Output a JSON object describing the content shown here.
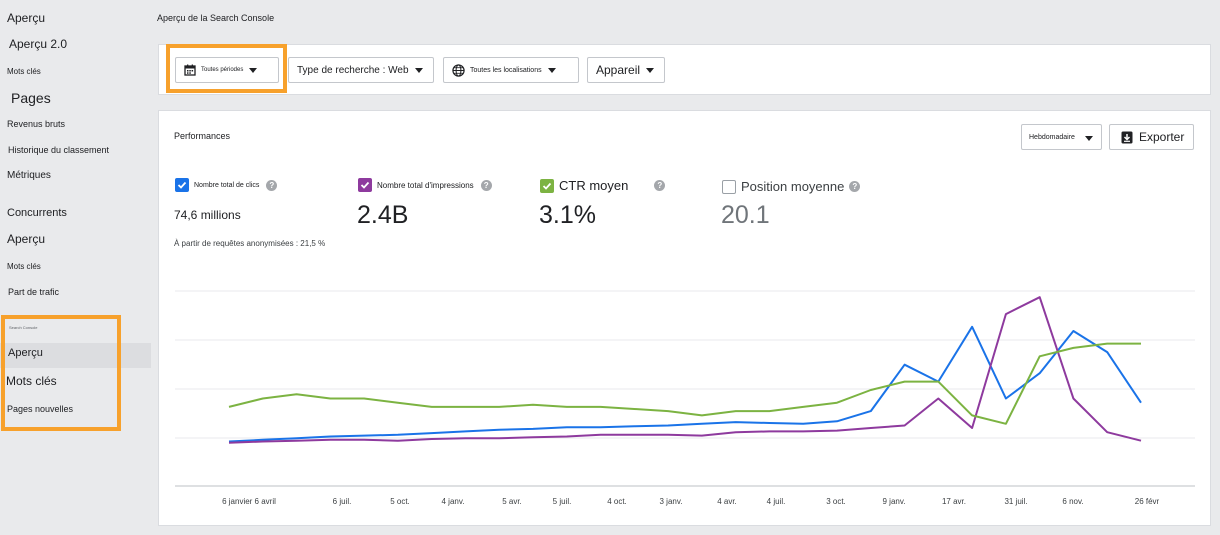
{
  "sidebar": {
    "items_top": [
      {
        "label": "Aperçu"
      },
      {
        "label": "Aperçu 2.0"
      },
      {
        "label": "Mots clés"
      },
      {
        "label": "Pages"
      },
      {
        "label": "Revenus bruts"
      },
      {
        "label": "Historique du classement"
      },
      {
        "label": "Métriques"
      }
    ],
    "competitors_heading": "Concurrents",
    "items_competitors": [
      {
        "label": "Aperçu"
      },
      {
        "label": "Mots clés"
      },
      {
        "label": "Part de trafic"
      }
    ],
    "search_console_heading": "Search Console",
    "items_search_console": [
      {
        "label": "Aperçu",
        "active": true
      },
      {
        "label": "Mots clés"
      },
      {
        "label": "Pages nouvelles"
      }
    ]
  },
  "header": {
    "title": "Aperçu de la Search Console"
  },
  "filters": {
    "period": "Toutes périodes",
    "search_type": "Type de recherche : Web",
    "location": "Toutes les localisations",
    "device": "Appareil"
  },
  "performance": {
    "title": "Performances",
    "frequency": "Hebdomadaire",
    "export_label": "Exporter",
    "metrics": [
      {
        "label": "Nombre total de clics",
        "value": "74,6 millions",
        "checked": true,
        "color": "#1a73e8"
      },
      {
        "label": "Nombre total d'impressions",
        "value": "2.4B",
        "checked": true,
        "color": "#8e3a9e"
      },
      {
        "label": "CTR moyen",
        "value": "3.1%",
        "checked": true,
        "color": "#7cb342"
      },
      {
        "label": "Position moyenne",
        "value": "20.1",
        "checked": false,
        "color": "#5f6368"
      }
    ],
    "note": "À partir de requêtes anonymisées : 21,5 %"
  },
  "chart_data": {
    "type": "line",
    "x_labels": [
      "6 janvier 6 avril",
      "6 juil.",
      "5 oct.",
      "4 janv.",
      "5 avr.",
      "5 juil.",
      "4 oct.",
      "3 janv.",
      "4 avr.",
      "4 juil.",
      "3 oct.",
      "9 janv.",
      "17 avr.",
      "31 juil.",
      "6 nov.",
      "26 févr"
    ],
    "grid": true,
    "y_tick_labels": false,
    "series": [
      {
        "name": "Nombre total de clics",
        "color": "#1a73e8",
        "values": [
          0.58,
          0.62,
          0.66,
          0.7,
          0.72,
          0.74,
          0.78,
          0.82,
          0.86,
          0.88,
          0.92,
          0.92,
          0.94,
          0.96,
          1.0,
          1.04,
          1.02,
          1.0,
          1.06,
          1.3,
          2.4,
          2.0,
          3.3,
          1.6,
          2.2,
          3.2,
          2.7,
          1.5
        ]
      },
      {
        "name": "Nombre total d'impressions",
        "color": "#8e3a9e",
        "values": [
          0.55,
          0.58,
          0.6,
          0.62,
          0.62,
          0.6,
          0.64,
          0.66,
          0.66,
          0.68,
          0.7,
          0.74,
          0.74,
          0.74,
          0.72,
          0.8,
          0.82,
          0.82,
          0.84,
          0.9,
          0.96,
          1.6,
          0.9,
          3.6,
          4.0,
          1.6,
          0.8,
          0.6
        ]
      },
      {
        "name": "CTR moyen",
        "color": "#7cb342",
        "values": [
          1.4,
          1.6,
          1.7,
          1.6,
          1.6,
          1.5,
          1.4,
          1.4,
          1.4,
          1.45,
          1.4,
          1.4,
          1.35,
          1.3,
          1.2,
          1.3,
          1.3,
          1.4,
          1.5,
          1.8,
          2.0,
          2.0,
          1.2,
          1.0,
          2.6,
          2.8,
          2.9,
          2.9
        ]
      }
    ]
  }
}
